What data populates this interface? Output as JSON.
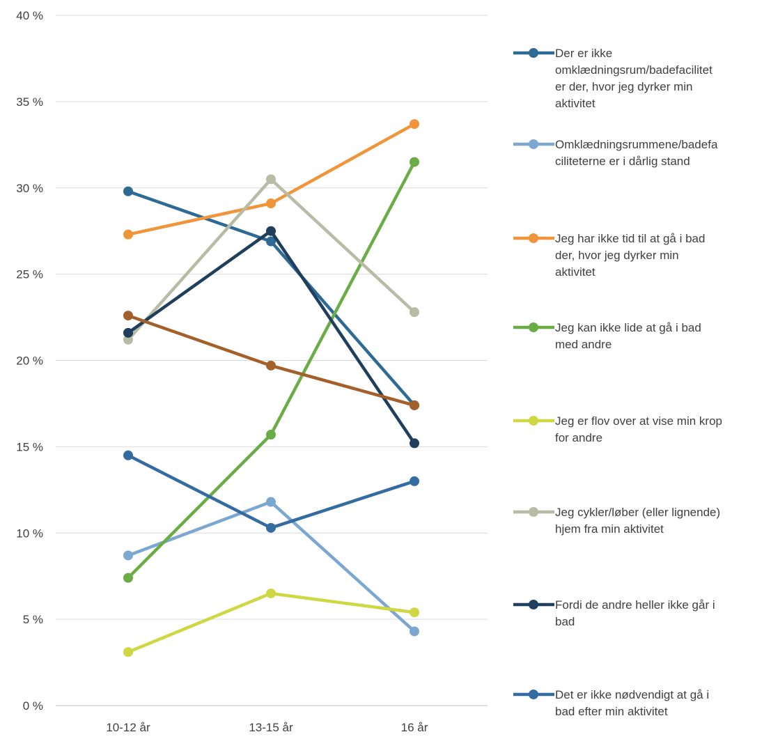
{
  "chart_data": {
    "type": "line",
    "categories": [
      "10-12 år",
      "13-15 år",
      "16 år"
    ],
    "ylim": [
      0,
      40
    ],
    "y_ticks": [
      "0 %",
      "5 %",
      "10 %",
      "15 %",
      "20 %",
      "25 %",
      "30 %",
      "35 %",
      "40 %"
    ],
    "grid": true,
    "legend_position": "right",
    "series": [
      {
        "name": "Der er ikke omklædningsrum/badefaciliteter der, hvor jeg dyrker min aktivitet",
        "name_lines": [
          "Der er ikke",
          "omklædningsrum/badefacilitet",
          "er der, hvor jeg dyrker min",
          "aktivitet"
        ],
        "color": "#2e6b94",
        "values": [
          29.8,
          26.9,
          17.4
        ]
      },
      {
        "name": "Omklædningsrummene/badefaciliteterne er i dårlig stand",
        "name_lines": [
          "Omklædningsrummene/badefa",
          "ciliteterne er i dårlig stand"
        ],
        "color": "#7ba7d1",
        "values": [
          8.7,
          11.8,
          4.3
        ]
      },
      {
        "name": "Jeg har ikke tid til at gå i bad der, hvor jeg dyrker min aktivitet",
        "name_lines": [
          "Jeg har ikke tid til at gå i bad",
          "der, hvor jeg dyrker min",
          "aktivitet"
        ],
        "color": "#f0953a",
        "values": [
          27.3,
          29.1,
          33.7
        ]
      },
      {
        "name": "Jeg kan ikke lide at gå i bad med andre",
        "name_lines": [
          "Jeg kan ikke lide at gå i bad",
          "med andre"
        ],
        "color": "#6aad47",
        "values": [
          7.4,
          15.7,
          31.5
        ]
      },
      {
        "name": "Jeg er flov over at vise min krop for andre",
        "name_lines": [
          "Jeg er flov over at vise min krop",
          "for andre"
        ],
        "color": "#cfd742",
        "values": [
          3.1,
          6.5,
          5.4
        ]
      },
      {
        "name": "Jeg cykler/løber (eller lignende) hjem fra min aktivitet",
        "name_lines": [
          "Jeg cykler/løber (eller lignende)",
          "hjem fra min aktivitet"
        ],
        "color": "#b8bca4",
        "values": [
          21.2,
          30.5,
          22.8
        ]
      },
      {
        "name": "Fordi de andre heller ikke går i bad",
        "name_lines": [
          "Fordi de andre heller ikke går i",
          "bad"
        ],
        "color": "#1f3f5c",
        "values": [
          21.6,
          27.5,
          15.2
        ]
      },
      {
        "name": "Det er ikke nødvendigt at gå i bad efter min aktivitet",
        "name_lines": [
          "Det er ikke nødvendigt at gå i",
          "bad efter min aktivitet"
        ],
        "color": "#346ca1",
        "values": [
          14.5,
          10.3,
          13.0
        ]
      },
      {
        "name": "",
        "name_lines": [],
        "color": "#a4602b",
        "values": [
          22.6,
          19.7,
          17.4
        ]
      }
    ]
  }
}
